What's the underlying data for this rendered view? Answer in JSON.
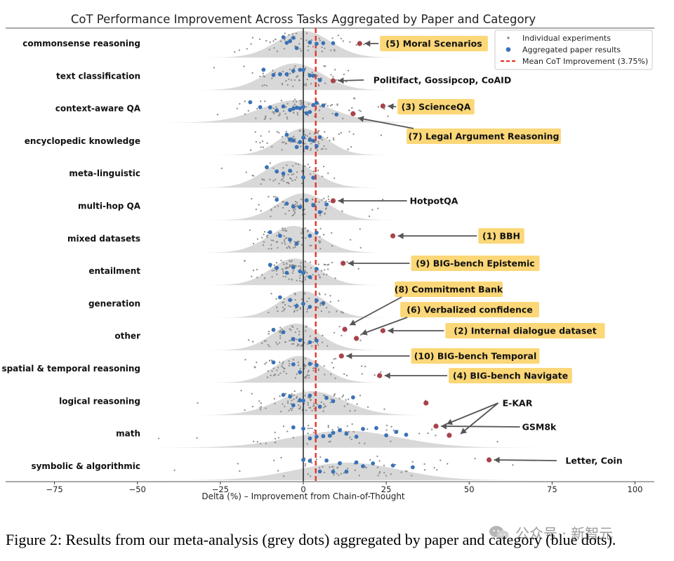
{
  "chart_data": {
    "type": "scatter",
    "title": "CoT Performance Improvement Across Tasks Aggregated by Paper and Category",
    "xlabel": "Delta (%) – Improvement from Chain-of-Thought",
    "ylabel": "",
    "xlim": [
      -80,
      100
    ],
    "xticks": [
      -75,
      -50,
      -25,
      0,
      25,
      50,
      75,
      100
    ],
    "xtick_labels": [
      "−75",
      "−50",
      "−25",
      "0",
      "25",
      "50",
      "75",
      "100"
    ],
    "zero_line": 0,
    "mean_line": 3.75,
    "categories": [
      "commonsense reasoning",
      "text classification",
      "context-aware QA",
      "encyclopedic knowledge",
      "meta-linguistic",
      "multi-hop QA",
      "mixed datasets",
      "entailment",
      "generation",
      "other",
      "spatial & temporal reasoning",
      "logical reasoning",
      "math",
      "symbolic & algorithmic"
    ],
    "legend": {
      "position": "top-right",
      "entries": [
        {
          "label": "Individual experiments",
          "marker": "small-dot",
          "color": "#8c8c8c"
        },
        {
          "label": "Aggregated paper results",
          "marker": "dot",
          "color": "#3a72b5"
        },
        {
          "label": "Mean CoT Improvement (3.75%)",
          "marker": "dashed-line",
          "color": "#e8332a"
        }
      ]
    },
    "aggregated": [
      [
        -6,
        -5,
        -4,
        -3,
        -2,
        2,
        4,
        6,
        9
      ],
      [
        -12,
        -9,
        -7,
        -5,
        -3,
        -1,
        0,
        2,
        3,
        5
      ],
      [
        -16,
        -13,
        -10,
        -8,
        -6,
        -4,
        -3,
        -2,
        -1,
        0,
        1,
        2,
        3,
        4,
        6,
        10
      ],
      [
        -5,
        -4,
        -3,
        -2,
        -1,
        0,
        1,
        2,
        3,
        4,
        5
      ],
      [
        -11,
        -8,
        -6,
        -4,
        0,
        3
      ],
      [
        -8,
        -5,
        -3,
        -1,
        1,
        3,
        5,
        7
      ],
      [
        -10,
        -7,
        -4,
        -2,
        2,
        4
      ],
      [
        -10,
        -8,
        -5,
        -3,
        -1,
        0,
        2,
        4
      ],
      [
        -7,
        -4,
        -2,
        0,
        2,
        4,
        6
      ],
      [
        -9,
        -6,
        -3,
        -1,
        2,
        4
      ],
      [
        -9,
        -3,
        -1,
        2,
        4
      ],
      [
        -6,
        -4,
        -3,
        -1,
        0,
        2,
        5,
        7,
        9,
        15
      ],
      [
        -3,
        0,
        2,
        4,
        6,
        8,
        9,
        11,
        13,
        16,
        18,
        22,
        25,
        28,
        31
      ],
      [
        0,
        2,
        5,
        7,
        9,
        11,
        13,
        16,
        18,
        21,
        27,
        33
      ]
    ],
    "highlights": [
      {
        "category": "commonsense reasoning",
        "x": 17,
        "label": "(5) Moral Scenarios",
        "boxed": true
      },
      {
        "category": "text classification",
        "x": 9,
        "label": "Politifact, Gossipcop, CoAID",
        "boxed": false
      },
      {
        "category": "context-aware QA",
        "x": 24,
        "label": "(3) ScienceQA",
        "boxed": true
      },
      {
        "category": "context-aware QA",
        "x": 15,
        "label": "(7) Legal Argument Reasoning",
        "boxed": true
      },
      {
        "category": "multi-hop QA",
        "x": 9,
        "label": "HotpotQA",
        "boxed": false
      },
      {
        "category": "mixed datasets",
        "x": 27,
        "label": "(1) BBH",
        "boxed": true
      },
      {
        "category": "entailment",
        "x": 12,
        "label": "(9) BIG-bench Epistemic",
        "boxed": true
      },
      {
        "category": "other",
        "x": 12.5,
        "label": "(8) Commitment Bank",
        "boxed": true
      },
      {
        "category": "other",
        "x": 16,
        "label": "(6) Verbalized confidence",
        "boxed": true
      },
      {
        "category": "other",
        "x": 24,
        "label": "(2) Internal dialogue dataset",
        "boxed": true
      },
      {
        "category": "spatial & temporal reasoning",
        "x": 11.5,
        "label": "(10) BIG-bench Temporal",
        "boxed": true
      },
      {
        "category": "spatial & temporal reasoning",
        "x": 23,
        "label": "(4) BIG-bench Navigate",
        "boxed": true
      },
      {
        "category": "logical reasoning",
        "x": 37,
        "label": "E-KAR",
        "boxed": false
      },
      {
        "category": "math",
        "x": 40,
        "label": "GSM8k",
        "boxed": false
      },
      {
        "category": "math",
        "x": 44,
        "label": "",
        "boxed": false
      },
      {
        "category": "symbolic & algorithmic",
        "x": 56,
        "label": "Letter, Coin",
        "boxed": false
      }
    ],
    "colors": {
      "individual": "#8c8c8c",
      "aggregated": "#3a72b5",
      "highlight": "#a8434b",
      "mean_line": "#e8332a",
      "density": "#d4d4d4",
      "label_box": "#fbd778",
      "arrow": "#555555"
    }
  },
  "caption": "Figure 2: Results from our meta-analysis (grey dots) aggregated by paper and category (blue dots).",
  "watermark": "公众号 · 新智元"
}
